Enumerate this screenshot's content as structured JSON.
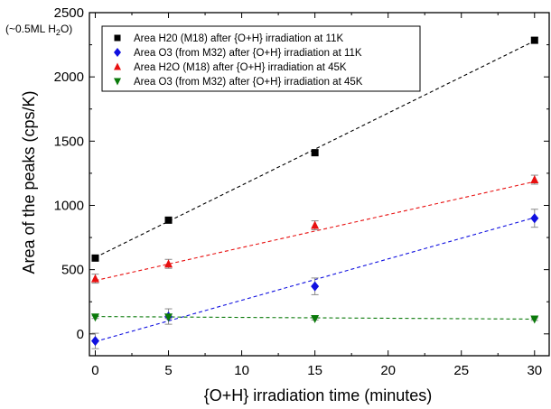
{
  "chart_data": {
    "type": "scatter",
    "xlabel": "{O+H} irradiation time (minutes)",
    "ylabel": "Area of the peaks (cps/K)",
    "corner_note": "(~0.5ML H",
    "corner_note_sub": "2",
    "corner_note_end": "O)",
    "xlim": [
      -0.4,
      31
    ],
    "ylim": [
      -170,
      2500
    ],
    "xticks": [
      0,
      5,
      10,
      15,
      20,
      25,
      30
    ],
    "yticks": [
      0,
      500,
      1000,
      1500,
      2000,
      2500
    ],
    "grid": false,
    "legend_position": "top-left",
    "series": [
      {
        "name": "Area H20 (M18) after {O+H} irradiation at 11K",
        "marker": "square",
        "color": "#000000",
        "x": [
          0,
          5,
          15,
          30
        ],
        "y": [
          590,
          885,
          1410,
          2285
        ],
        "yerr": [
          18,
          18,
          18,
          22
        ],
        "fit": [
          595,
          2280
        ]
      },
      {
        "name": "Area O3 (from M32) after {O+H} irradiation at 11K",
        "marker": "diamond",
        "color": "#1010e0",
        "x": [
          0,
          5,
          15,
          30
        ],
        "y": [
          -55,
          135,
          370,
          900
        ],
        "yerr": [
          60,
          60,
          65,
          70
        ],
        "fit": [
          -60,
          905
        ]
      },
      {
        "name": "Area H2O (M18) after {O+H} irradiation at 45K",
        "marker": "triangle-up",
        "color": "#e81010",
        "x": [
          0,
          5,
          15,
          30
        ],
        "y": [
          430,
          545,
          845,
          1200
        ],
        "yerr": [
          35,
          35,
          35,
          35
        ],
        "fit": [
          415,
          1185
        ]
      },
      {
        "name": "Area O3 (from M32) after {O+H} irradiation at  45K",
        "marker": "triangle-down",
        "color": "#0a7a0a",
        "x": [
          0,
          5,
          15,
          30
        ],
        "y": [
          130,
          130,
          118,
          115
        ],
        "yerr": [
          10,
          10,
          10,
          10
        ],
        "fit": [
          135,
          115
        ]
      }
    ]
  }
}
